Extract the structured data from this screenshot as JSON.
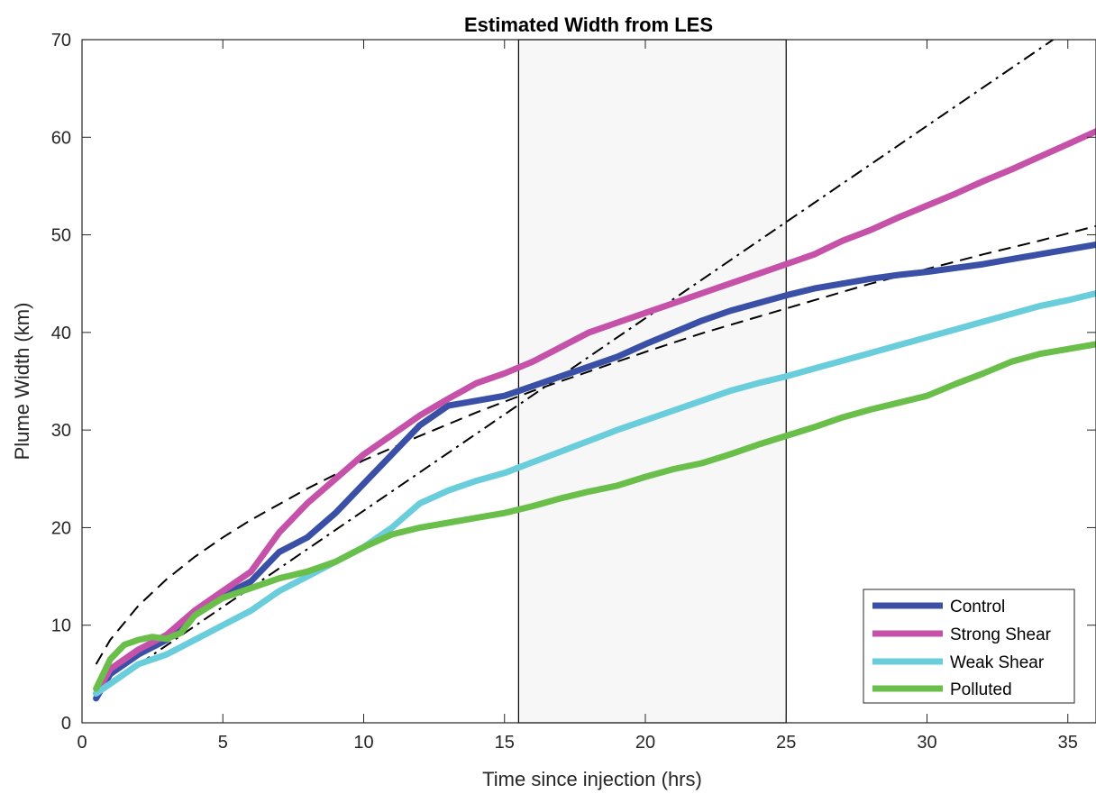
{
  "chart_data": {
    "type": "line",
    "title": "Estimated Width from LES",
    "xlabel": "Time since injection (hrs)",
    "ylabel": "Plume Width (km)",
    "xlim": [
      0,
      36
    ],
    "ylim": [
      0,
      70
    ],
    "xticks": [
      0,
      5,
      10,
      15,
      20,
      25,
      30,
      35
    ],
    "yticks": [
      0,
      10,
      20,
      30,
      40,
      50,
      60,
      70
    ],
    "grid": false,
    "legend_position": "bottom-right",
    "shaded_interval": [
      15.5,
      25
    ],
    "series": [
      {
        "name": "Control",
        "color": "#3a4fa6",
        "x": [
          0.5,
          1,
          2,
          3,
          4,
          5,
          6,
          7,
          8,
          9,
          10,
          11,
          12,
          13,
          14,
          15,
          16,
          17,
          18,
          19,
          20,
          21,
          22,
          23,
          24,
          25,
          26,
          27,
          28,
          29,
          30,
          31,
          32,
          33,
          34,
          35,
          36
        ],
        "y": [
          2.5,
          5,
          7,
          8.5,
          11,
          13,
          14.5,
          17.5,
          19,
          21.5,
          24.5,
          27.5,
          30.5,
          32.5,
          33,
          33.5,
          34.5,
          35.5,
          36.5,
          37.5,
          38.8,
          40,
          41.2,
          42.2,
          43,
          43.8,
          44.5,
          45,
          45.5,
          45.9,
          46.2,
          46.6,
          47,
          47.5,
          48,
          48.5,
          49
        ]
      },
      {
        "name": "Strong Shear",
        "color": "#c551a8",
        "x": [
          0.5,
          1,
          2,
          3,
          4,
          5,
          6,
          7,
          8,
          9,
          10,
          11,
          12,
          13,
          14,
          15,
          16,
          17,
          18,
          19,
          20,
          21,
          22,
          23,
          24,
          25,
          26,
          27,
          28,
          29,
          30,
          31,
          32,
          33,
          34,
          35,
          36
        ],
        "y": [
          3,
          5.5,
          7.5,
          9,
          11.5,
          13.5,
          15.5,
          19.5,
          22.5,
          25,
          27.5,
          29.5,
          31.5,
          33.2,
          34.8,
          35.8,
          37,
          38.5,
          40,
          41,
          42,
          43,
          44,
          45,
          46,
          47,
          48,
          49.4,
          50.5,
          51.8,
          53,
          54.2,
          55.5,
          56.7,
          58,
          59.3,
          60.6
        ]
      },
      {
        "name": "Weak Shear",
        "color": "#6acddb",
        "x": [
          0.5,
          1,
          2,
          3,
          4,
          5,
          6,
          7,
          8,
          9,
          10,
          11,
          12,
          13,
          14,
          15,
          16,
          17,
          18,
          19,
          20,
          21,
          22,
          23,
          24,
          25,
          26,
          27,
          28,
          29,
          30,
          31,
          32,
          33,
          34,
          35,
          36
        ],
        "y": [
          3,
          4,
          6,
          7,
          8.5,
          10,
          11.5,
          13.5,
          15,
          16.5,
          18,
          20,
          22.5,
          23.8,
          24.8,
          25.6,
          26.7,
          27.8,
          28.9,
          30,
          31,
          32,
          33,
          34,
          34.8,
          35.5,
          36.3,
          37.1,
          37.9,
          38.7,
          39.5,
          40.3,
          41.1,
          41.9,
          42.7,
          43.3,
          44
        ]
      },
      {
        "name": "Polluted",
        "color": "#6abf4b",
        "x": [
          0.5,
          1,
          1.5,
          2,
          2.5,
          3,
          3.5,
          4,
          5,
          6,
          7,
          8,
          9,
          10,
          11,
          12,
          13,
          14,
          15,
          16,
          17,
          18,
          19,
          20,
          21,
          22,
          23,
          24,
          25,
          26,
          27,
          28,
          29,
          30,
          31,
          32,
          33,
          34,
          35,
          36
        ],
        "y": [
          3.5,
          6.5,
          8,
          8.5,
          8.8,
          8.6,
          9.2,
          11,
          12.8,
          13.8,
          14.8,
          15.5,
          16.5,
          18,
          19.3,
          20,
          20.5,
          21,
          21.5,
          22.2,
          23,
          23.7,
          24.3,
          25.2,
          26,
          26.6,
          27.5,
          28.5,
          29.4,
          30.3,
          31.3,
          32.1,
          32.8,
          33.5,
          34.7,
          35.8,
          37,
          37.8,
          38.3,
          38.8
        ]
      }
    ],
    "reference_curves": [
      {
        "style": "dashed",
        "color": "#000000",
        "x": [
          0.5,
          1,
          2,
          3,
          4,
          5,
          6,
          8,
          10,
          12,
          14,
          16,
          18,
          20,
          22,
          24,
          26,
          28,
          30,
          32,
          34,
          36
        ],
        "y": [
          6,
          8.5,
          12,
          14.7,
          17,
          19,
          20.8,
          24,
          26.9,
          29.4,
          31.8,
          34,
          36,
          38,
          39.9,
          41.6,
          43.3,
          45,
          46.5,
          48,
          49.4,
          50.9
        ]
      },
      {
        "style": "dash-dot",
        "color": "#000000",
        "x": [
          0.5,
          36
        ],
        "y": [
          3,
          73
        ]
      }
    ]
  }
}
